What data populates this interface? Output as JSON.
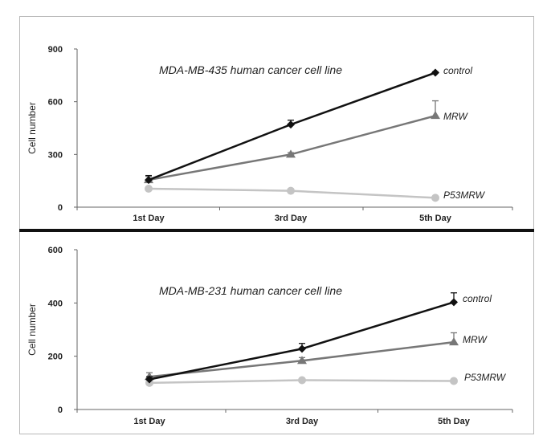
{
  "chart_data": [
    {
      "type": "line",
      "title": "MDA-MB-435 human cancer cell line",
      "xlabel": "",
      "ylabel": "Cell number",
      "categories": [
        "1st Day",
        "3rd Day",
        "5th Day"
      ],
      "ylim": [
        0,
        900
      ],
      "yticks": [
        0,
        300,
        600,
        900
      ],
      "grid": false,
      "series": [
        {
          "name": "control",
          "values": [
            155,
            470,
            765
          ],
          "errors": [
            25,
            25,
            5
          ],
          "marker": "diamond",
          "color": "#111111"
        },
        {
          "name": "MRW",
          "values": [
            155,
            300,
            520
          ],
          "errors": [
            20,
            10,
            85
          ],
          "marker": "triangle",
          "color": "#777777"
        },
        {
          "name": "P53MRW",
          "values": [
            105,
            93,
            53
          ],
          "errors": [
            5,
            5,
            5
          ],
          "marker": "circle",
          "color": "#c4c4c4"
        }
      ]
    },
    {
      "type": "line",
      "title": "MDA-MB-231 human cancer cell line",
      "xlabel": "",
      "ylabel": "Cell number",
      "categories": [
        "1st Day",
        "3rd Day",
        "5th Day"
      ],
      "ylim": [
        0,
        600
      ],
      "yticks": [
        0,
        200,
        400,
        600
      ],
      "grid": false,
      "series": [
        {
          "name": "control",
          "values": [
            113,
            228,
            403
          ],
          "errors": [
            10,
            20,
            35
          ],
          "marker": "diamond",
          "color": "#111111"
        },
        {
          "name": "MRW",
          "values": [
            123,
            183,
            253
          ],
          "errors": [
            15,
            12,
            35
          ],
          "marker": "triangle",
          "color": "#777777"
        },
        {
          "name": "P53MRW",
          "values": [
            100,
            110,
            107
          ],
          "errors": [
            5,
            5,
            5
          ],
          "marker": "circle",
          "color": "#c4c4c4"
        }
      ]
    }
  ]
}
